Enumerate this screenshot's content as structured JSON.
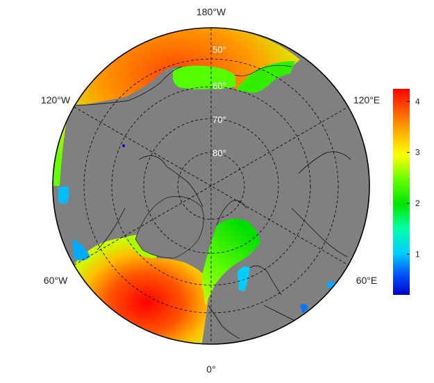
{
  "map": {
    "projection": "north-polar-stereographic",
    "background_color": "#808080",
    "outline_color": "#000000",
    "graticule_style": "dashed",
    "longitude_labels": [
      {
        "id": "lon-180w",
        "text": "180°W",
        "lon": 180
      },
      {
        "id": "lon-120w",
        "text": "120°W",
        "lon": -120
      },
      {
        "id": "lon-120e",
        "text": "120°E",
        "lon": 120
      },
      {
        "id": "lon-60w",
        "text": "60°W",
        "lon": -60
      },
      {
        "id": "lon-60e",
        "text": "60°E",
        "lon": 60
      },
      {
        "id": "lon-0",
        "text": "0°",
        "lon": 0
      }
    ],
    "latitude_labels": [
      {
        "id": "lat-50",
        "text": "50°",
        "lat": 50
      },
      {
        "id": "lat-60",
        "text": "60°",
        "lat": 60
      },
      {
        "id": "lat-70",
        "text": "70°",
        "lat": 70
      },
      {
        "id": "lat-80",
        "text": "80°",
        "lat": 80
      }
    ]
  },
  "colorbar": {
    "min": 0.2,
    "max": 4.25,
    "ticks": [
      {
        "value": 1,
        "label": "1"
      },
      {
        "value": 2,
        "label": "2"
      },
      {
        "value": 3,
        "label": "3"
      },
      {
        "value": 4,
        "label": "4"
      }
    ],
    "colors": [
      "#0000c8",
      "#0066ff",
      "#00ffff",
      "#00ee00",
      "#66ff00",
      "#ffff00",
      "#ff9900",
      "#ff0000"
    ]
  }
}
